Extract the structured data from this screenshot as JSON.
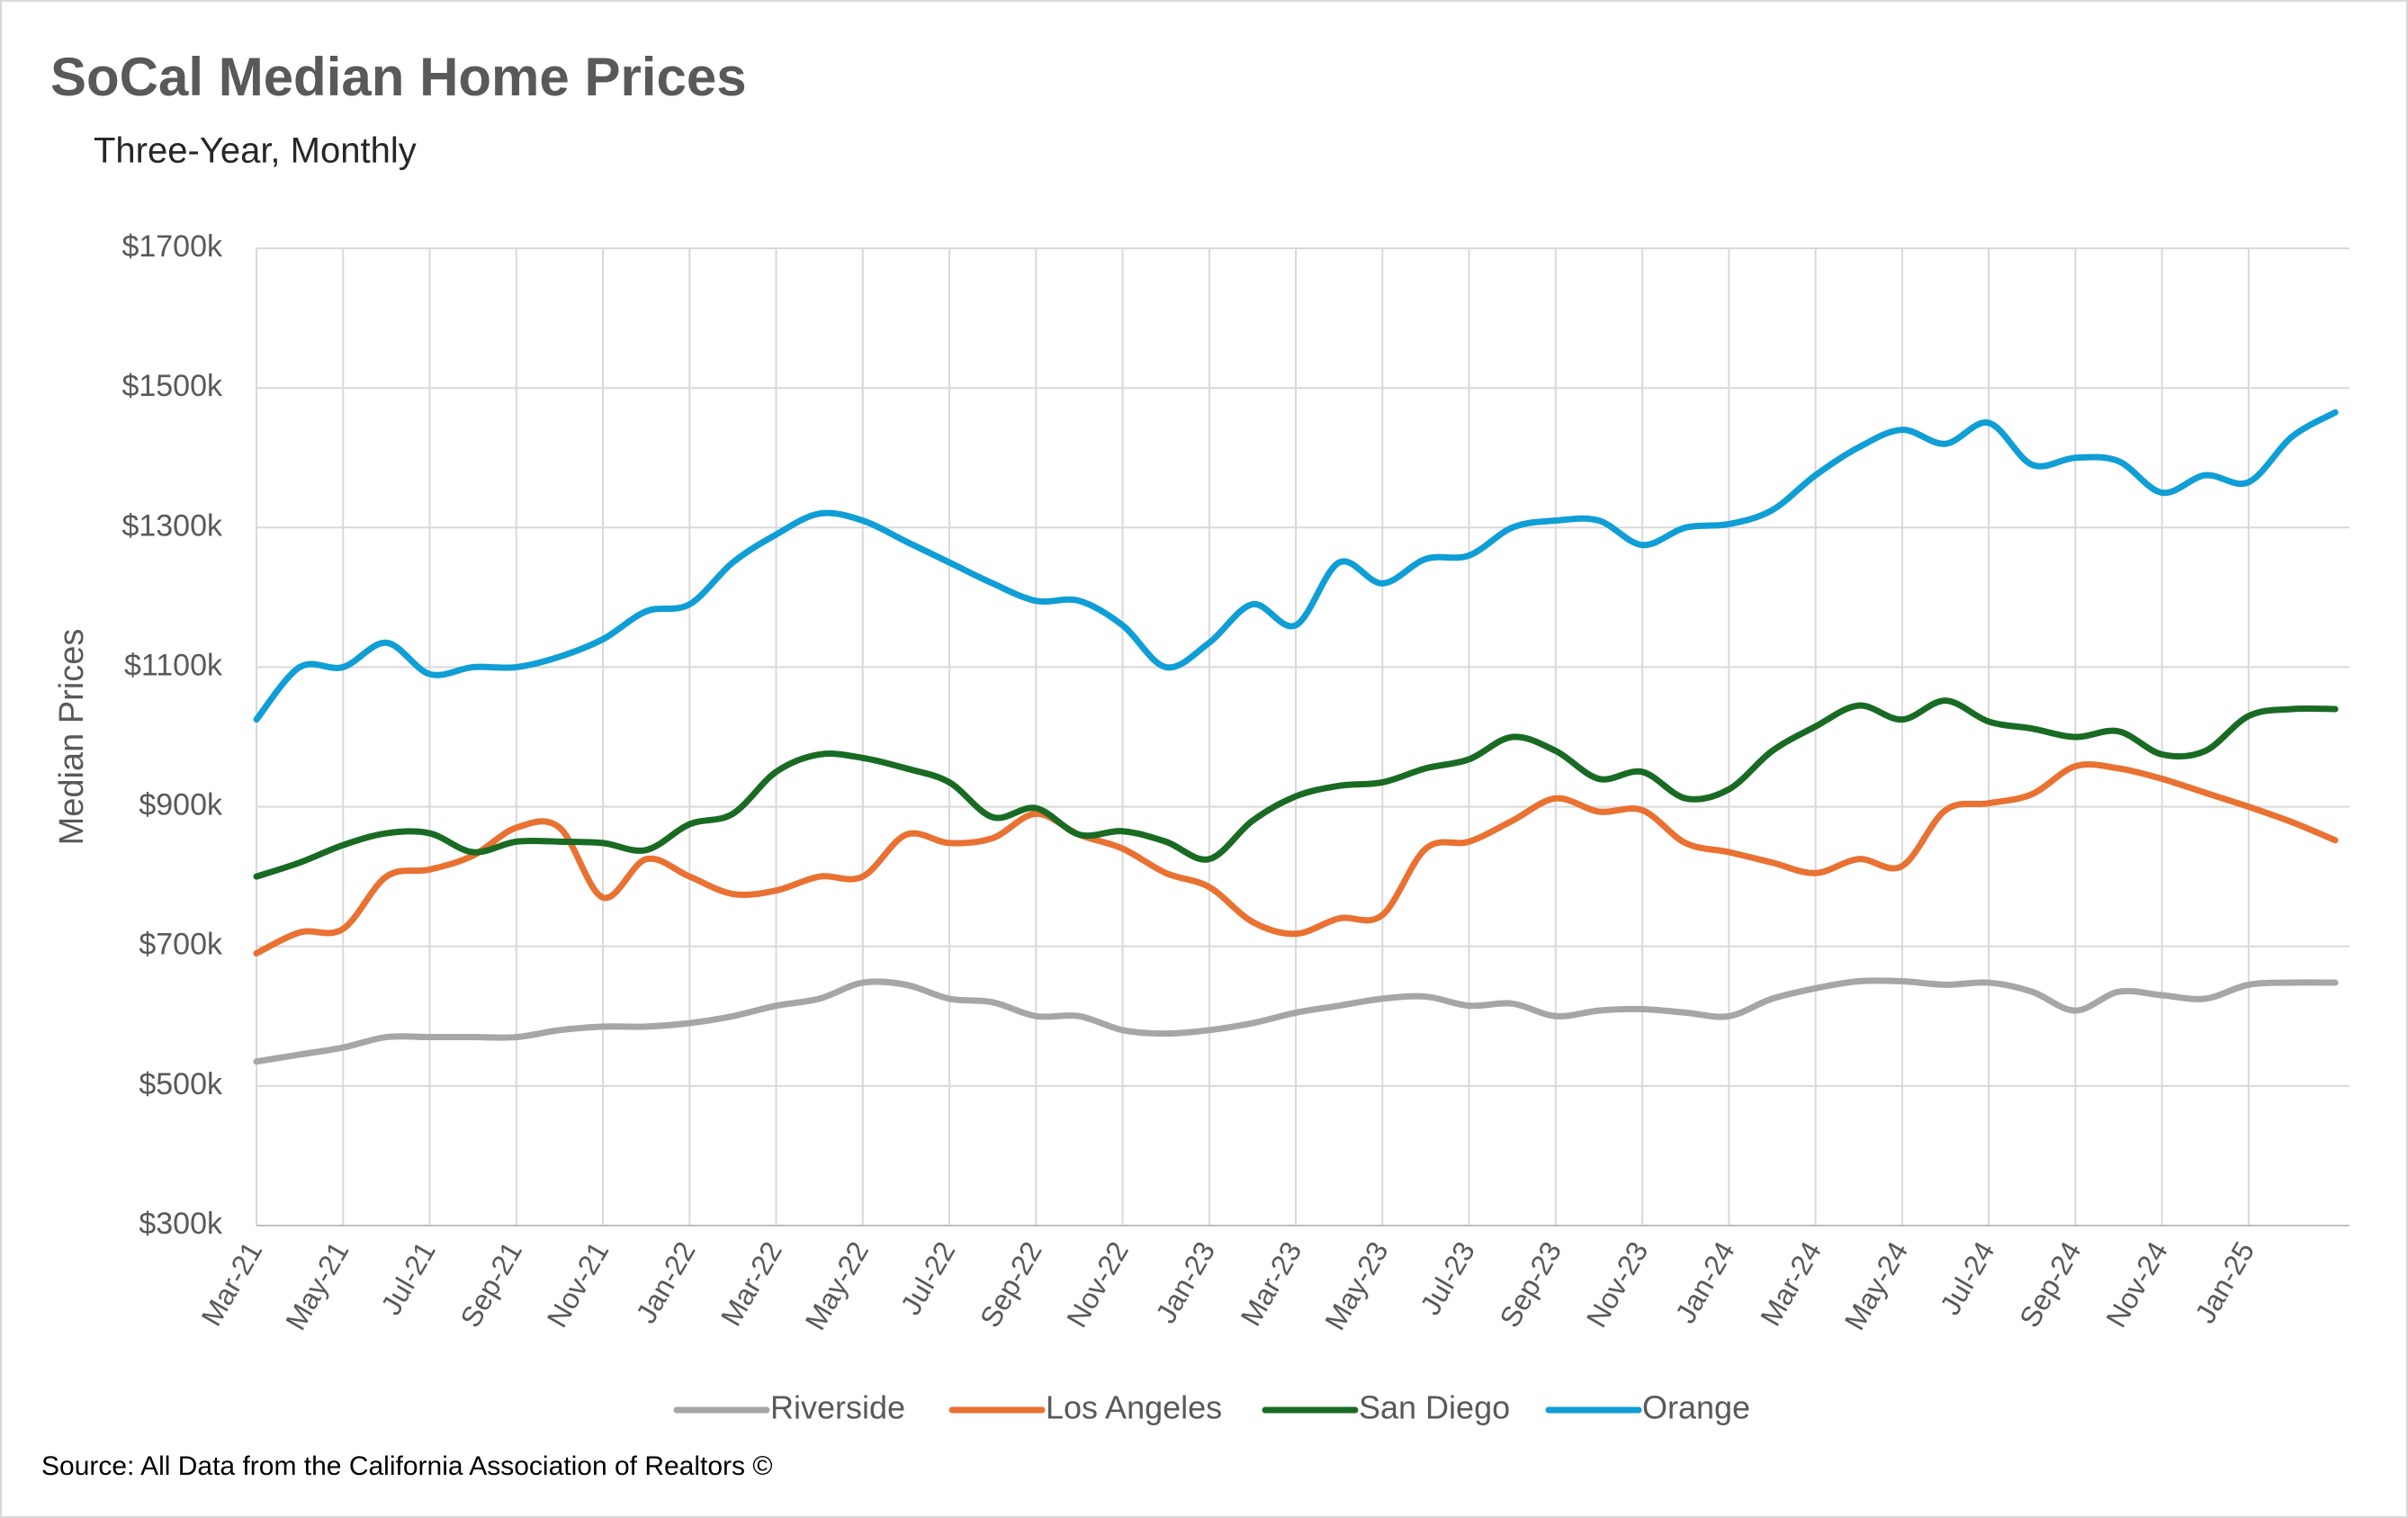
{
  "chart_data": {
    "type": "line",
    "title": "SoCal Median Home Prices",
    "subtitle": "Three-Year, Monthly",
    "y_label": "Median Prices",
    "source": "Source: All Data from the California Association of Realtors ©",
    "categories": [
      "Mar-21",
      null,
      "May-21",
      null,
      "Jul-21",
      null,
      "Sep-21",
      null,
      "Nov-21",
      null,
      "Jan-22",
      null,
      "Mar-22",
      null,
      "May-22",
      null,
      "Jul-22",
      null,
      "Sep-22",
      null,
      "Nov-22",
      null,
      "Jan-23",
      null,
      "Mar-23",
      null,
      "May-23",
      null,
      "Jul-23",
      null,
      "Sep-23",
      null,
      "Nov-23",
      null,
      "Jan-24",
      null,
      "Mar-24",
      null,
      "May-24",
      null,
      "Jul-24",
      null,
      "Sep-24",
      null,
      "Nov-24",
      null,
      "Jan-25",
      null,
      null
    ],
    "ylim": [
      300,
      1700
    ],
    "yticks": [
      {
        "value": 300,
        "label": "$300k"
      },
      {
        "value": 500,
        "label": "$500k"
      },
      {
        "value": 700,
        "label": "$700k"
      },
      {
        "value": 900,
        "label": "$900k"
      },
      {
        "value": 1100,
        "label": "$1100k"
      },
      {
        "value": 1300,
        "label": "$1300k"
      },
      {
        "value": 1500,
        "label": "$1500k"
      },
      {
        "value": 1700,
        "label": "$1700k"
      }
    ],
    "grid": true,
    "legend": "bottom",
    "series": [
      {
        "name": "Riverside",
        "color": "#a6a6a6",
        "values": [
          535,
          545,
          555,
          570,
          570,
          570,
          570,
          580,
          585,
          585,
          590,
          600,
          615,
          625,
          648,
          645,
          625,
          620,
          600,
          600,
          580,
          575,
          580,
          590,
          605,
          615,
          625,
          628,
          615,
          618,
          600,
          608,
          610,
          605,
          600,
          625,
          640,
          650,
          650,
          645,
          648,
          635,
          608,
          635,
          630,
          625,
          645,
          648,
          648
        ]
      },
      {
        "name": "Los Angeles",
        "color": "#e97132",
        "values": [
          690,
          720,
          725,
          800,
          810,
          830,
          870,
          870,
          770,
          825,
          800,
          775,
          780,
          800,
          800,
          860,
          848,
          855,
          890,
          860,
          840,
          805,
          785,
          735,
          718,
          740,
          745,
          840,
          850,
          880,
          912,
          893,
          895,
          848,
          835,
          820,
          805,
          825,
          815,
          895,
          905,
          918,
          958,
          955,
          940,
          920,
          900,
          878,
          852
        ]
      },
      {
        "name": "San Diego",
        "color": "#196b24",
        "values": [
          800,
          820,
          845,
          862,
          862,
          835,
          850,
          850,
          848,
          838,
          875,
          890,
          950,
          975,
          970,
          955,
          935,
          885,
          898,
          860,
          865,
          850,
          825,
          880,
          915,
          930,
          935,
          955,
          968,
          1000,
          980,
          940,
          950,
          912,
          925,
          980,
          1015,
          1045,
          1025,
          1052,
          1022,
          1012,
          1000,
          1008,
          975,
          980,
          1030,
          1040,
          1040
        ]
      },
      {
        "name": "Orange",
        "color": "#0f9ed5",
        "values": [
          1025,
          1100,
          1100,
          1135,
          1090,
          1100,
          1100,
          1115,
          1140,
          1180,
          1190,
          1250,
          1290,
          1320,
          1310,
          1280,
          1250,
          1220,
          1195,
          1195,
          1160,
          1100,
          1135,
          1190,
          1160,
          1250,
          1220,
          1255,
          1260,
          1300,
          1310,
          1310,
          1275,
          1300,
          1305,
          1325,
          1375,
          1415,
          1440,
          1420,
          1450,
          1390,
          1400,
          1395,
          1350,
          1375,
          1365,
          1430,
          1465
        ]
      }
    ]
  }
}
